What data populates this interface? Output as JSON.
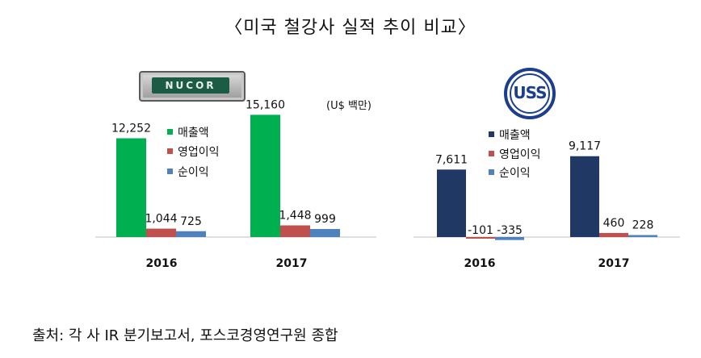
{
  "title": "〈미국 철강사 실적 추이 비교〉",
  "unit": "(U$ 백만)",
  "source": "출처: 각 사 IR 분기보고서, 포스코경영연구원 종합",
  "logos": {
    "nucor": "NUCOR",
    "uss": "USS"
  },
  "chart_data": [
    {
      "type": "bar",
      "company": "NUCOR",
      "categories": [
        "2016",
        "2017"
      ],
      "series": [
        {
          "name": "매출액",
          "values": [
            12252,
            15160
          ],
          "labels": [
            "12,252",
            "15,160"
          ],
          "color": "#00b050"
        },
        {
          "name": "영업이익",
          "values": [
            1044,
            1448
          ],
          "labels": [
            "1,044",
            "1,448"
          ],
          "color": "#c0504d"
        },
        {
          "name": "순이익",
          "values": [
            725,
            999
          ],
          "labels": [
            "725",
            "999"
          ],
          "color": "#4f81bd"
        }
      ],
      "legend_position": "inside, right of first category"
    },
    {
      "type": "bar",
      "company": "U.S. Steel",
      "categories": [
        "2016",
        "2017"
      ],
      "series": [
        {
          "name": "매출액",
          "values": [
            7611,
            9117
          ],
          "labels": [
            "7,611",
            "9,117"
          ],
          "color": "#1f3864"
        },
        {
          "name": "영업이익",
          "values": [
            -101,
            460
          ],
          "labels": [
            "-101",
            "460"
          ],
          "color": "#c0504d"
        },
        {
          "name": "순이익",
          "values": [
            -335,
            228
          ],
          "labels": [
            "-335",
            "228"
          ],
          "color": "#4f81bd"
        }
      ],
      "legend_position": "inside, right of first category"
    }
  ]
}
